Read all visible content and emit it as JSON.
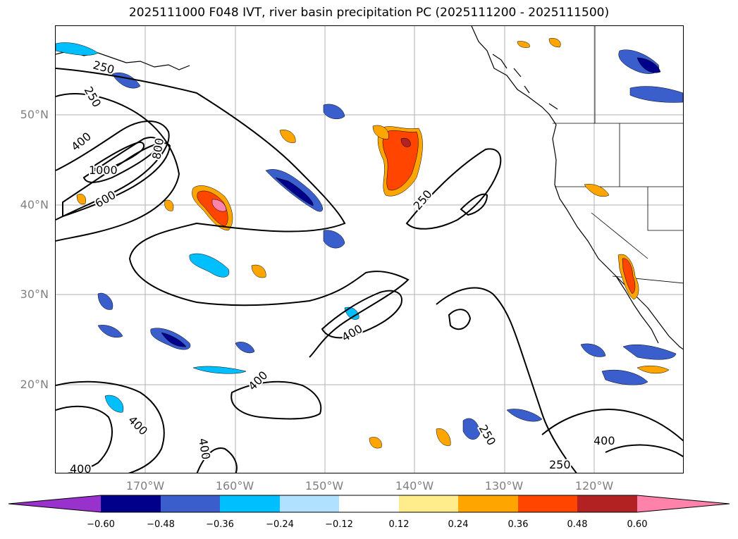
{
  "title": "2025111000 F048 IVT, river basin precipitation PC (2025111200 - 2025111500)",
  "map": {
    "lat_labels": [
      "50°N",
      "40°N",
      "30°N",
      "20°N"
    ],
    "lon_labels": [
      "170°W",
      "160°W",
      "150°W",
      "140°W",
      "130°W",
      "120°W"
    ],
    "contour_labels": [
      "250",
      "250",
      "400",
      "800",
      "1000",
      "600",
      "250",
      "400",
      "400",
      "250",
      "400",
      "250",
      "400",
      "400",
      "400"
    ],
    "colors": {
      "grid": "#b0b0b0",
      "contour": "#000000",
      "coast": "#000000"
    }
  },
  "colorbar": {
    "ticks": [
      "−0.60",
      "−0.48",
      "−0.36",
      "−0.24",
      "−0.12",
      "0.12",
      "0.24",
      "0.36",
      "0.48",
      "0.60"
    ],
    "colors": [
      "#9932cc",
      "#00008b",
      "#3a5fcd",
      "#00bfff",
      "#b0e2ff",
      "#ffffff",
      "#ffec8b",
      "#ffa500",
      "#ff4500",
      "#b22222",
      "#ff82ab"
    ]
  }
}
